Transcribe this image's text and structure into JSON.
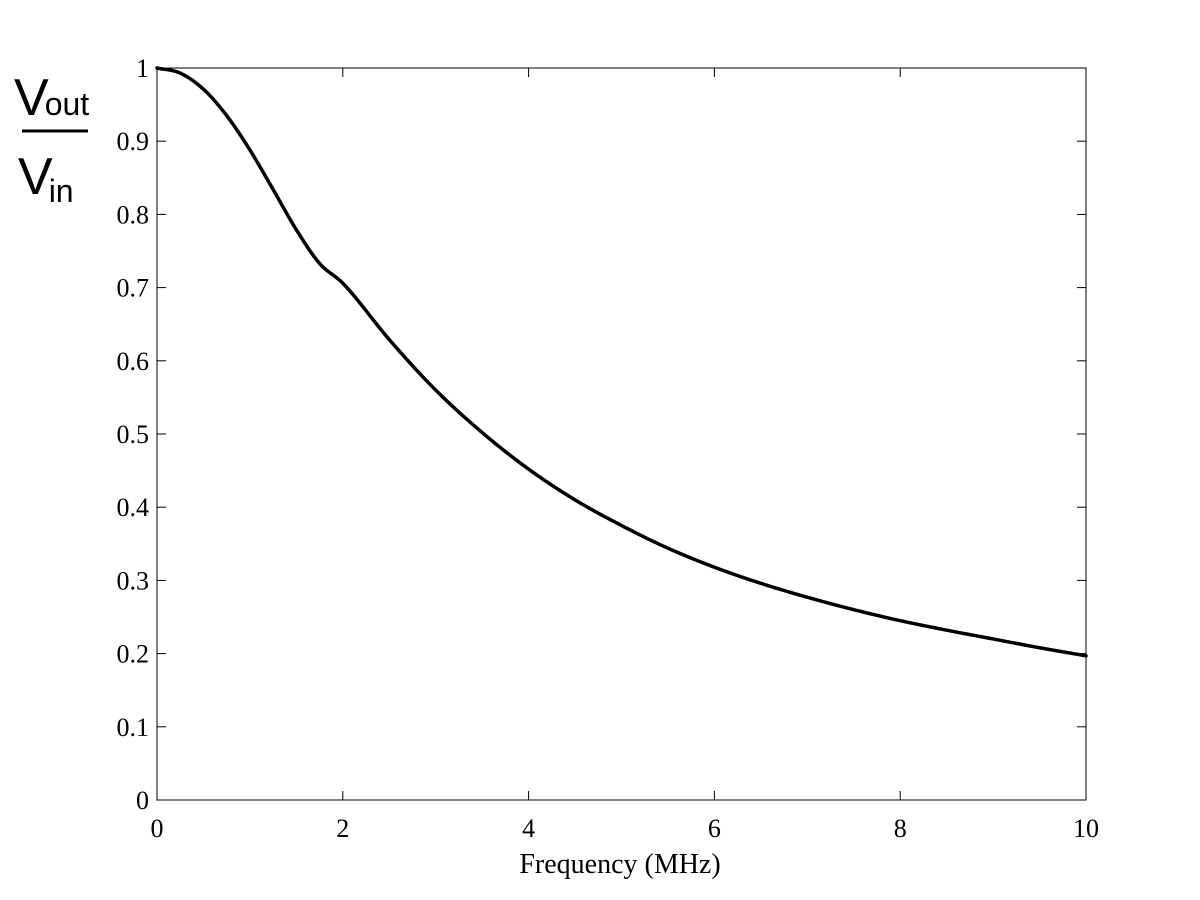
{
  "chart_data": {
    "type": "line",
    "xlabel": "Frequency (MHz)",
    "ylabel": {
      "num_main": "V",
      "num_sub": "out",
      "den_main": "V",
      "den_sub": "in"
    },
    "xlim": [
      0,
      10
    ],
    "ylim": [
      0,
      1
    ],
    "xticks": [
      0,
      2,
      4,
      6,
      8,
      10
    ],
    "xtick_labels": [
      "0",
      "2",
      "4",
      "6",
      "8",
      "10"
    ],
    "yticks": [
      0,
      0.1,
      0.2,
      0.3,
      0.4,
      0.5,
      0.6,
      0.7,
      0.8,
      0.9,
      1
    ],
    "ytick_labels": [
      "0",
      "0.1",
      "0.2",
      "0.3",
      "0.4",
      "0.5",
      "0.6",
      "0.7",
      "0.8",
      "0.9",
      "1"
    ],
    "grid": false,
    "series": [
      {
        "color": "#000000",
        "x": [
          0,
          0.25,
          0.5,
          0.75,
          1,
          1.25,
          1.5,
          1.75,
          2,
          2.5,
          3,
          3.5,
          4,
          4.5,
          5,
          5.5,
          6,
          6.5,
          7,
          7.5,
          8,
          8.5,
          9,
          9.5,
          10
        ],
        "y": [
          1.0,
          0.993,
          0.971,
          0.935,
          0.888,
          0.834,
          0.779,
          0.733,
          0.706,
          0.629,
          0.56,
          0.502,
          0.452,
          0.41,
          0.375,
          0.344,
          0.318,
          0.296,
          0.277,
          0.26,
          0.245,
          0.232,
          0.22,
          0.208,
          0.197
        ]
      }
    ]
  }
}
